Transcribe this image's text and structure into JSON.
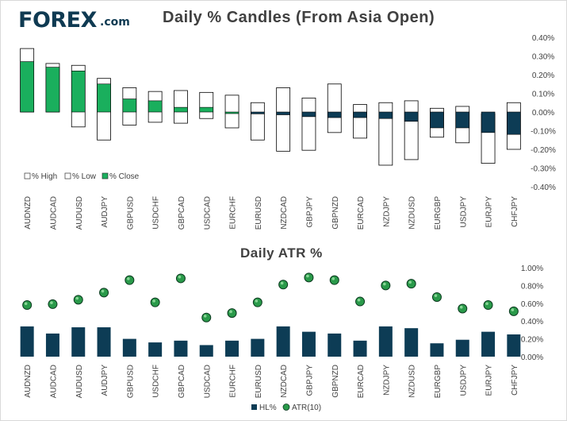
{
  "logo": {
    "brand": "FOREX",
    "suffix": ".com"
  },
  "colors": {
    "close_up": "#1aaf5d",
    "close_down": "#0d3c55",
    "range_box": "#ffffff",
    "box_stroke": "#000000",
    "bar": "#0d3c55",
    "marker": "#2a9a4a",
    "text": "#404040"
  },
  "chart_data": [
    {
      "type": "bar",
      "title": "Daily % Candles (From Asia Open)",
      "categories": [
        "AUDNZD",
        "AUDCAD",
        "AUDUSD",
        "AUDJPY",
        "GBPUSD",
        "USDCHF",
        "GBPCAD",
        "USDCAD",
        "EURCHF",
        "EURUSD",
        "NZDCAD",
        "GBPJPY",
        "GBPNZD",
        "EURCAD",
        "NZDJPY",
        "NZDUSD",
        "EURGBP",
        "USDJPY",
        "EURJPY",
        "CHFJPY"
      ],
      "series": [
        {
          "name": "% High",
          "values": [
            0.34,
            0.26,
            0.25,
            0.18,
            0.13,
            0.11,
            0.115,
            0.105,
            0.09,
            0.05,
            0.13,
            0.075,
            0.15,
            0.04,
            0.05,
            0.06,
            0.02,
            0.03,
            -0.01,
            0.05
          ]
        },
        {
          "name": "% Low",
          "values": [
            0.0,
            0.0,
            -0.08,
            -0.15,
            -0.07,
            -0.055,
            -0.06,
            -0.035,
            -0.085,
            -0.15,
            -0.21,
            -0.205,
            -0.11,
            -0.14,
            -0.285,
            -0.255,
            -0.135,
            -0.165,
            -0.275,
            -0.2
          ]
        },
        {
          "name": "% Close",
          "values": [
            0.27,
            0.24,
            0.22,
            0.15,
            0.07,
            0.06,
            0.025,
            0.025,
            0.0,
            -0.01,
            -0.015,
            -0.025,
            -0.03,
            -0.03,
            -0.035,
            -0.05,
            -0.085,
            -0.085,
            -0.11,
            -0.12
          ]
        }
      ],
      "ylim": [
        -0.4,
        0.4
      ],
      "yticks": [
        "0.40%",
        "0.30%",
        "0.20%",
        "0.10%",
        "0.00%",
        "-0.10%",
        "-0.20%",
        "-0.30%",
        "-0.40%"
      ],
      "legend": [
        "% High",
        "% Low",
        "% Close"
      ],
      "legend_position": "bottom-left"
    },
    {
      "type": "bar",
      "title": "Daily ATR %",
      "categories": [
        "AUDNZD",
        "AUDCAD",
        "AUDUSD",
        "AUDJPY",
        "GBPUSD",
        "USDCHF",
        "GBPCAD",
        "USDCAD",
        "EURCHF",
        "EURUSD",
        "NZDCAD",
        "GBPJPY",
        "GBPNZD",
        "EURCAD",
        "NZDJPY",
        "NZDUSD",
        "EURGBP",
        "USDJPY",
        "EURJPY",
        "CHFJPY"
      ],
      "series": [
        {
          "name": "HL%",
          "type": "bar",
          "values": [
            0.34,
            0.26,
            0.33,
            0.33,
            0.2,
            0.16,
            0.18,
            0.13,
            0.18,
            0.2,
            0.34,
            0.28,
            0.26,
            0.18,
            0.34,
            0.32,
            0.15,
            0.19,
            0.28,
            0.25
          ]
        },
        {
          "name": "ATR(10)",
          "type": "scatter",
          "values": [
            0.58,
            0.59,
            0.64,
            0.72,
            0.86,
            0.61,
            0.88,
            0.44,
            0.49,
            0.61,
            0.81,
            0.89,
            0.86,
            0.62,
            0.8,
            0.82,
            0.67,
            0.54,
            0.58,
            0.51
          ]
        }
      ],
      "ylim": [
        0.0,
        1.0
      ],
      "yticks": [
        "1.00%",
        "0.80%",
        "0.60%",
        "0.40%",
        "0.20%",
        "0.00%"
      ],
      "legend": [
        "HL%",
        "ATR(10)"
      ],
      "legend_position": "bottom"
    }
  ]
}
